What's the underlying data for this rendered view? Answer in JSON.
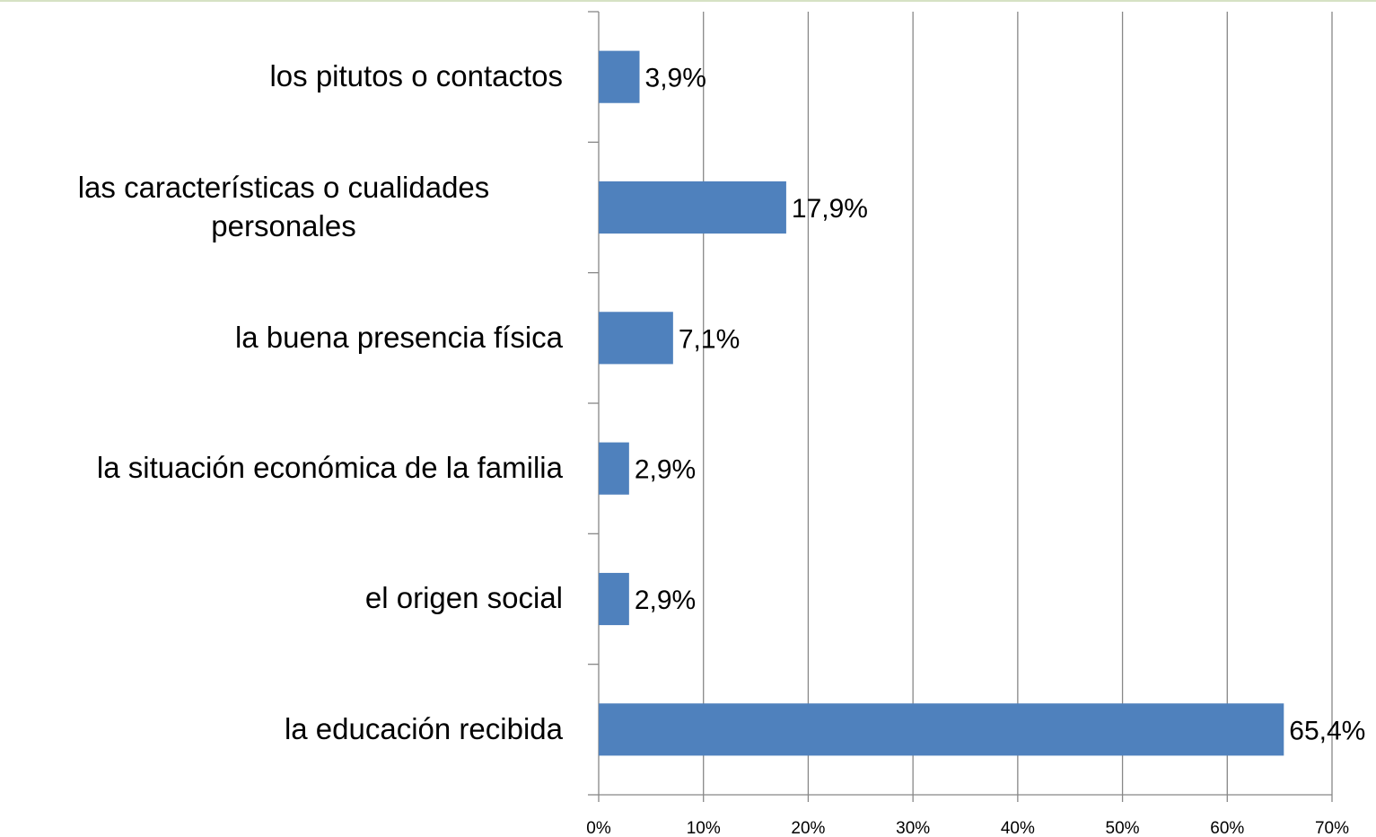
{
  "chart_data": {
    "type": "bar",
    "orientation": "horizontal",
    "categories": [
      "los pitutos o contactos",
      "las características o cualidades personales",
      "la buena presencia física",
      "la situación económica de la familia",
      "el origen social",
      "la educación recibida"
    ],
    "values": [
      3.9,
      17.9,
      7.1,
      2.9,
      2.9,
      65.4
    ],
    "value_labels": [
      "3,9%",
      "17,9%",
      "7,1%",
      "2,9%",
      "2,9%",
      "65,4%"
    ],
    "color": "#4f81bd",
    "xlim": [
      0,
      70
    ],
    "xticks": [
      {
        "value": 0,
        "label": "0%"
      },
      {
        "value": 10,
        "label": "10%"
      },
      {
        "value": 20,
        "label": "20%"
      },
      {
        "value": 30,
        "label": "30%"
      },
      {
        "value": 40,
        "label": "40%"
      },
      {
        "value": 50,
        "label": "50%"
      },
      {
        "value": 60,
        "label": "60%"
      },
      {
        "value": 70,
        "label": "70%"
      }
    ],
    "grid": true
  }
}
